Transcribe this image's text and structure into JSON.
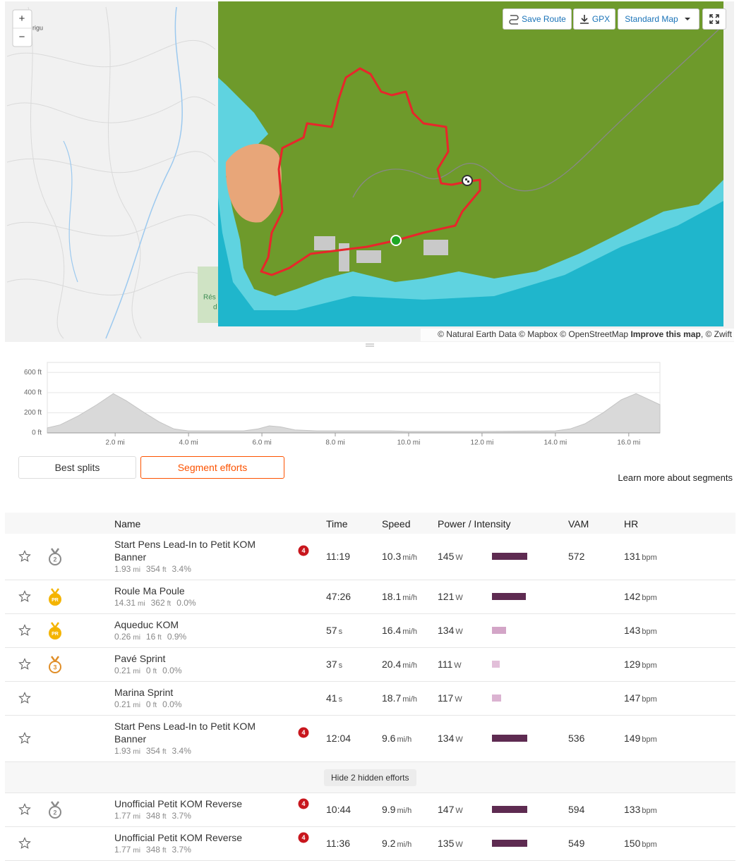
{
  "map": {
    "zoom_in": "+",
    "zoom_out": "−",
    "labels": [
      "rigu",
      "Rés",
      "d"
    ],
    "save_route": "Save Route",
    "gpx": "GPX",
    "map_style": "Standard Map",
    "attribution": "© Natural Earth Data © Mapbox © OpenStreetMap",
    "improve": "Improve this map",
    "attribution_end": ", © Zwift"
  },
  "elevation": {
    "type": "area",
    "x": [
      0.15,
      0.5,
      1.0,
      1.5,
      1.95,
      2.3,
      2.8,
      3.2,
      3.6,
      4.0,
      5.5,
      5.9,
      6.2,
      6.5,
      6.9,
      7.5,
      8.0,
      9.5,
      10.0,
      12.0,
      14.0,
      14.4,
      14.8,
      15.3,
      15.8,
      16.2,
      16.5,
      16.85
    ],
    "values": [
      50,
      80,
      170,
      280,
      390,
      320,
      200,
      110,
      40,
      20,
      20,
      40,
      70,
      60,
      30,
      20,
      20,
      20,
      15,
      15,
      20,
      40,
      90,
      200,
      330,
      390,
      340,
      280
    ],
    "color": "#d9d9d9",
    "xlim": [
      0.15,
      16.85
    ],
    "ylim": [
      0,
      700
    ],
    "xticks": [
      {
        "value": 2,
        "label": "2.0 mi"
      },
      {
        "value": 4,
        "label": "4.0 mi"
      },
      {
        "value": 6,
        "label": "6.0 mi"
      },
      {
        "value": 8,
        "label": "8.0 mi"
      },
      {
        "value": 10,
        "label": "10.0 mi"
      },
      {
        "value": 12,
        "label": "12.0 mi"
      },
      {
        "value": 14,
        "label": "14.0 mi"
      },
      {
        "value": 16,
        "label": "16.0 mi"
      }
    ],
    "yticks": [
      {
        "value": 0,
        "label": "0 ft"
      },
      {
        "value": 200,
        "label": "200 ft"
      },
      {
        "value": 400,
        "label": "400 ft"
      },
      {
        "value": 600,
        "label": "600 ft"
      }
    ],
    "grid": true
  },
  "tabs": [
    "Best splits",
    "Segment efforts"
  ],
  "learn_more": "Learn more about segments",
  "table": {
    "headers": [
      "Name",
      "Time",
      "Speed",
      "Power / Intensity",
      "VAM",
      "HR"
    ],
    "rows": [
      {
        "name": "Start Pens Lead-In to Petit KOM Banner",
        "distance": "1.93",
        "distance_unit": "mi",
        "elevation": "354",
        "elevation_unit": "ft",
        "grade": "3.4%",
        "medal": "2",
        "medal_color": "#8a8a8a",
        "rank": "4",
        "time": "11:19",
        "speed": "10.3",
        "speed_unit": "mi/h",
        "power": "145",
        "power_unit": "W",
        "intensity": 100,
        "intensity_color": "#5e2b51",
        "vam": "572",
        "hr": "131",
        "hr_unit": "bpm"
      },
      {
        "name": "Roule Ma Poule",
        "distance": "14.31",
        "distance_unit": "mi",
        "elevation": "362",
        "elevation_unit": "ft",
        "grade": "0.0%",
        "medal": "PR",
        "medal_color": "#f4b400",
        "time": "47:26",
        "speed": "18.1",
        "speed_unit": "mi/h",
        "power": "121",
        "power_unit": "W",
        "intensity": 96,
        "intensity_color": "#5e2b51",
        "hr": "142",
        "hr_unit": "bpm"
      },
      {
        "name": "Aqueduc KOM",
        "distance": "0.26",
        "distance_unit": "mi",
        "elevation": "16",
        "elevation_unit": "ft",
        "grade": "0.9%",
        "medal": "PR",
        "medal_color": "#f4b400",
        "time": "57",
        "time_unit": "s",
        "speed": "16.4",
        "speed_unit": "mi/h",
        "power": "134",
        "power_unit": "W",
        "intensity": 40,
        "intensity_color": "#d3a5c7",
        "hr": "143",
        "hr_unit": "bpm"
      },
      {
        "name": "Pavé Sprint",
        "distance": "0.21",
        "distance_unit": "mi",
        "elevation": "0",
        "elevation_unit": "ft",
        "grade": "0.0%",
        "medal": "3",
        "medal_color": "#e08e28",
        "time": "37",
        "time_unit": "s",
        "speed": "20.4",
        "speed_unit": "mi/h",
        "power": "111",
        "power_unit": "W",
        "intensity": 22,
        "intensity_color": "#e2bfd9",
        "hr": "129",
        "hr_unit": "bpm"
      },
      {
        "name": "Marina Sprint",
        "distance": "0.21",
        "distance_unit": "mi",
        "elevation": "0",
        "elevation_unit": "ft",
        "grade": "0.0%",
        "time": "41",
        "time_unit": "s",
        "speed": "18.7",
        "speed_unit": "mi/h",
        "power": "117",
        "power_unit": "W",
        "intensity": 26,
        "intensity_color": "#dbb3d1",
        "hr": "147",
        "hr_unit": "bpm"
      },
      {
        "name": "Start Pens Lead-In to Petit KOM Banner",
        "distance": "1.93",
        "distance_unit": "mi",
        "elevation": "354",
        "elevation_unit": "ft",
        "grade": "3.4%",
        "rank": "4",
        "time": "12:04",
        "speed": "9.6",
        "speed_unit": "mi/h",
        "power": "134",
        "power_unit": "W",
        "intensity": 100,
        "intensity_color": "#5e2b51",
        "vam": "536",
        "hr": "149",
        "hr_unit": "bpm"
      }
    ],
    "hide_button": "Hide 2 hidden efforts",
    "more_rows": [
      {
        "name": "Unofficial Petit KOM Reverse",
        "distance": "1.77",
        "distance_unit": "mi",
        "elevation": "348",
        "elevation_unit": "ft",
        "grade": "3.7%",
        "medal": "2",
        "medal_color": "#8a8a8a",
        "rank": "4",
        "time": "10:44",
        "speed": "9.9",
        "speed_unit": "mi/h",
        "power": "147",
        "power_unit": "W",
        "intensity": 100,
        "intensity_color": "#5e2b51",
        "vam": "594",
        "hr": "133",
        "hr_unit": "bpm"
      },
      {
        "name": "Unofficial Petit KOM Reverse",
        "distance": "1.77",
        "distance_unit": "mi",
        "elevation": "348",
        "elevation_unit": "ft",
        "grade": "3.7%",
        "rank": "4",
        "time": "11:36",
        "speed": "9.2",
        "speed_unit": "mi/h",
        "power": "135",
        "power_unit": "W",
        "intensity": 100,
        "intensity_color": "#5e2b51",
        "vam": "549",
        "hr": "150",
        "hr_unit": "bpm"
      }
    ]
  }
}
